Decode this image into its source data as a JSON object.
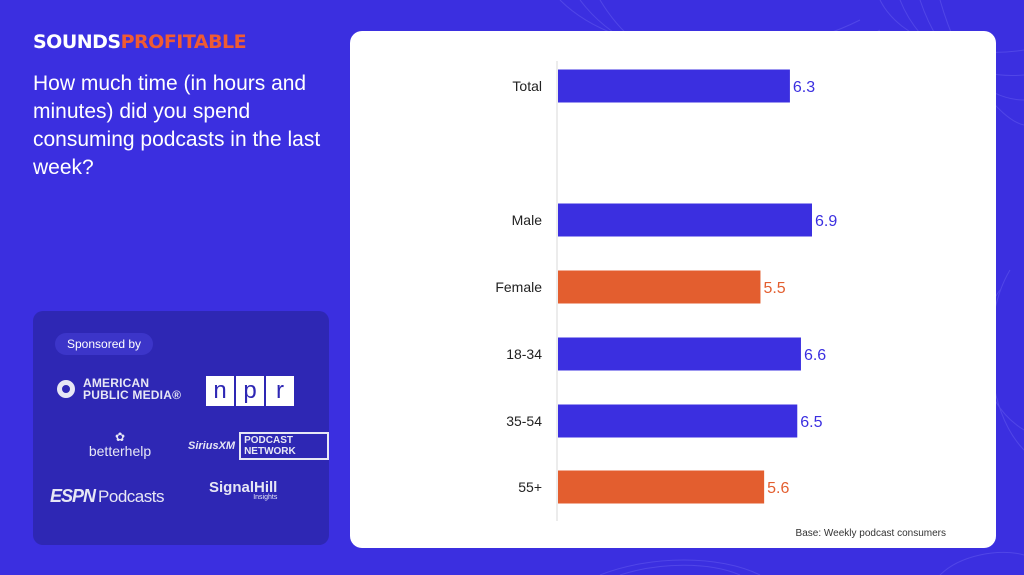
{
  "brand": {
    "word1": "SOUNDS",
    "word2": "PROFITABLE"
  },
  "question": "How much time (in hours and minutes) did you spend consuming podcasts in the last week?",
  "sponsors": {
    "label": "Sponsored by",
    "apm": "AMERICAN PUBLIC MEDIA®",
    "npr": [
      "n",
      "p",
      "r"
    ],
    "betterhelp": "betterhelp",
    "siriusxm": "SiriusXM",
    "siriusxm_network": "PODCAST NETWORK",
    "espn": "ESPN",
    "espn_podcasts": "Podcasts",
    "signalhill": "SignalHill",
    "signalhill_sub": "Insights"
  },
  "chart_data": {
    "type": "bar",
    "orientation": "horizontal",
    "categories": [
      "Total",
      "Male",
      "Female",
      "18-34",
      "35-54",
      "55+"
    ],
    "values": [
      6.3,
      6.9,
      5.5,
      6.6,
      6.5,
      5.6
    ],
    "bar_colors": [
      "#3b2fe0",
      "#3b2fe0",
      "#e35e2f",
      "#3b2fe0",
      "#3b2fe0",
      "#e35e2f"
    ],
    "value_label_colors": [
      "#3b2fe0",
      "#3b2fe0",
      "#e35e2f",
      "#3b2fe0",
      "#3b2fe0",
      "#e35e2f"
    ],
    "xlim": [
      0,
      8
    ],
    "grid": false,
    "note": "Base: Weekly podcast consumers"
  },
  "colors": {
    "background": "#3b2fe0",
    "accent": "#ef5b33",
    "card": "#ffffff"
  }
}
